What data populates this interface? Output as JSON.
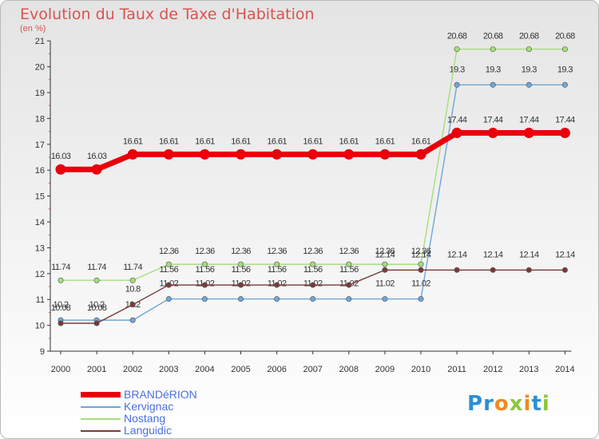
{
  "title": "Evolution du Taux de Taxe d'Habitation",
  "unit_label": "(en %)",
  "logo": {
    "text": "Proxiti",
    "colors": [
      "#2c8fd6",
      "#2c8fd6",
      "#f08a24",
      "#8cc63f",
      "#f08a24",
      "#2c8fd6",
      "#8cc63f"
    ]
  },
  "chart_data": {
    "type": "line",
    "x": [
      "2000",
      "2001",
      "2002",
      "2003",
      "2004",
      "2005",
      "2006",
      "2007",
      "2008",
      "2009",
      "2010",
      "2011",
      "2012",
      "2013",
      "2014"
    ],
    "ylim": [
      9,
      21
    ],
    "yticks": [
      9,
      10,
      11,
      12,
      13,
      14,
      15,
      16,
      17,
      18,
      19,
      20,
      21
    ],
    "grid": false,
    "legend_position": "bottom-left",
    "series": [
      {
        "name": "BRANDéRION",
        "color": "#e8000b",
        "values": [
          16.03,
          16.03,
          16.61,
          16.61,
          16.61,
          16.61,
          16.61,
          16.61,
          16.61,
          16.61,
          16.61,
          17.44,
          17.44,
          17.44,
          17.44
        ],
        "labels": [
          "16.03",
          "16.03",
          "16.61",
          "16.61",
          "16.61",
          "16.61",
          "16.61",
          "16.61",
          "16.61",
          "16.61",
          "16.61",
          "17.44",
          "17.44",
          "17.44",
          "17.44"
        ]
      },
      {
        "name": "Kervignac",
        "color": "#6fa6d8",
        "values": [
          10.2,
          10.2,
          10.2,
          11.02,
          11.02,
          11.02,
          11.02,
          11.02,
          11.02,
          11.02,
          11.02,
          19.3,
          19.3,
          19.3,
          19.3
        ],
        "labels": [
          "10.2",
          "10.2",
          "10.2",
          "11.02",
          "11.02",
          "11.02",
          "11.02",
          "11.02",
          "11.02",
          "11.02",
          "11.02",
          "19.3",
          "19.3",
          "19.3",
          "19.3"
        ]
      },
      {
        "name": "Nostang",
        "color": "#a6dd7c",
        "values": [
          11.74,
          11.74,
          11.74,
          12.36,
          12.36,
          12.36,
          12.36,
          12.36,
          12.36,
          12.36,
          12.36,
          20.68,
          20.68,
          20.68,
          20.68
        ],
        "labels": [
          "11.74",
          "11.74",
          "11.74",
          "12.36",
          "12.36",
          "12.36",
          "12.36",
          "12.36",
          "12.36",
          "12.36",
          "12.36",
          "20.68",
          "20.68",
          "20.68",
          "20.68"
        ]
      },
      {
        "name": "Languidic",
        "color": "#7a3a3a",
        "values": [
          10.08,
          10.08,
          10.8,
          11.56,
          11.56,
          11.56,
          11.56,
          11.56,
          11.56,
          12.14,
          12.14,
          12.14,
          12.14,
          12.14,
          12.14
        ],
        "labels": [
          "10.08",
          "10.08",
          "10.8",
          "11.56",
          "11.56",
          "11.56",
          "11.56",
          "11.56",
          "11.56",
          "12.14",
          "12.14",
          "12.14",
          "12.14",
          "12.14",
          "12.14"
        ]
      }
    ]
  }
}
